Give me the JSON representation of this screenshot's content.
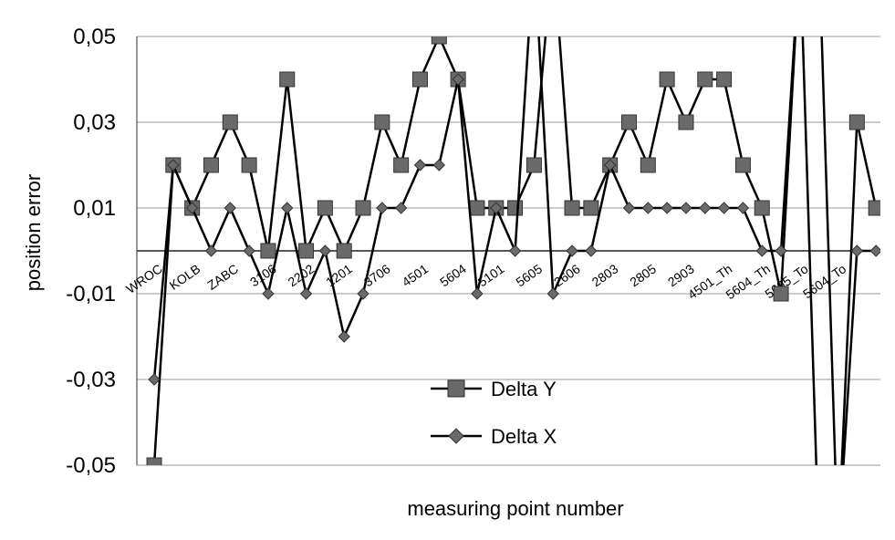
{
  "chart_data": {
    "type": "line",
    "title": "",
    "xlabel": "measuring point number",
    "ylabel": "position error",
    "ylim": [
      -0.05,
      0.05
    ],
    "yticks": [
      -0.05,
      -0.03,
      -0.01,
      0.01,
      0.03,
      0.05
    ],
    "ytick_labels": [
      "-0,05",
      "-0,03",
      "-0,01",
      "0,01",
      "0,03",
      "0,05"
    ],
    "grid": true,
    "legend_position": "bottom-center",
    "x_tick_labels": [
      "WROC",
      "KOLB",
      "ZABC",
      "3106",
      "2202",
      "1201",
      "3706",
      "4501",
      "5604",
      "5101",
      "5605",
      "2606",
      "2803",
      "2805",
      "2903",
      "4501_Th",
      "5604_Th",
      "5605_To",
      "5604_To"
    ],
    "point_count": 39,
    "series": [
      {
        "name": "Delta Y",
        "marker": "square",
        "values": [
          -0.05,
          0.02,
          0.01,
          0.02,
          0.03,
          0.02,
          0.0,
          0.04,
          0.0,
          0.01,
          0.0,
          0.01,
          0.03,
          0.02,
          0.04,
          0.05,
          0.04,
          0.01,
          0.01,
          0.01,
          0.02,
          0.07,
          0.01,
          0.01,
          0.02,
          0.03,
          0.02,
          0.04,
          0.03,
          0.04,
          0.04,
          0.02,
          0.01,
          -0.01,
          0.07,
          0.07,
          -0.07,
          0.03,
          0.01
        ]
      },
      {
        "name": "Delta X",
        "marker": "diamond",
        "values": [
          -0.03,
          0.02,
          0.01,
          0.0,
          0.01,
          0.0,
          -0.01,
          0.01,
          -0.01,
          0.0,
          -0.02,
          -0.01,
          0.01,
          0.01,
          0.02,
          0.02,
          0.04,
          -0.01,
          0.01,
          0.0,
          0.07,
          -0.01,
          0.0,
          0.0,
          0.02,
          0.01,
          0.01,
          0.01,
          0.01,
          0.01,
          0.01,
          0.01,
          0.0,
          0.0,
          0.07,
          -0.07,
          -0.07,
          0.0,
          0.0
        ]
      }
    ]
  }
}
